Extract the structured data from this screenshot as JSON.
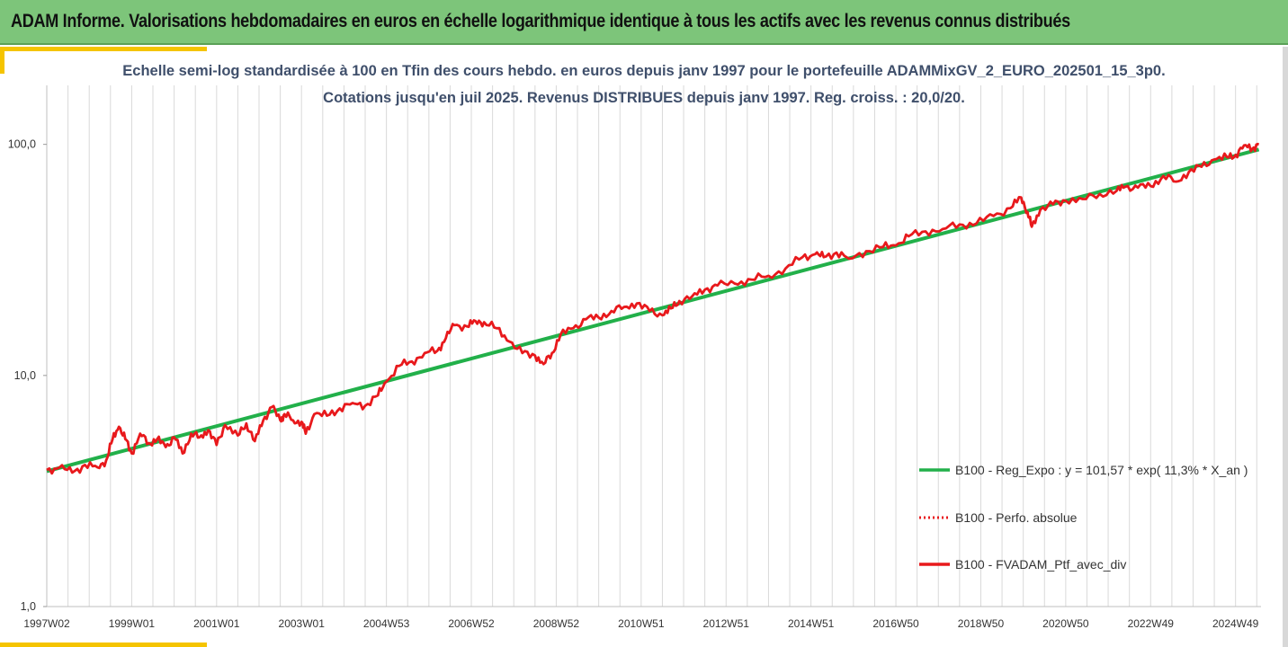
{
  "header": {
    "title": "ADAM Informe. Valorisations hebdomadaires en euros en échelle logarithmique identique à tous les actifs avec les revenus connus distribués"
  },
  "chart_data": {
    "type": "line",
    "title": "Echelle semi-log standardisée  à 100 en Tfin des cours hebdo.  en euros depuis janv 1997 pour le portefeuille ADAMMixGV_2_EURO_202501_15_3p0.",
    "subtitle": "Cotations  jusqu'en juil 2025. Revenus DISTRIBUES depuis janv 1997. Reg. croiss. : 20,0/20.",
    "y_scale": "log",
    "ylim": [
      1,
      180
    ],
    "y_ticks": [
      1,
      10,
      100
    ],
    "y_tick_labels": [
      "1,0",
      "10,0",
      "100,0"
    ],
    "xlim": [
      1997.0,
      2025.6
    ],
    "x_tick_labels": [
      "1997W02",
      "1999W01",
      "2001W01",
      "2003W01",
      "2004W53",
      "2006W52",
      "2008W52",
      "2010W51",
      "2012W51",
      "2014W51",
      "2016W50",
      "2018W50",
      "2020W50",
      "2022W49",
      "2024W49"
    ],
    "x_tick_values": [
      1997.0,
      1999.0,
      2001.0,
      2003.0,
      2005.0,
      2007.0,
      2009.0,
      2011.0,
      2013.0,
      2015.0,
      2017.0,
      2019.0,
      2021.0,
      2023.0,
      2025.0
    ],
    "grid": "vertical",
    "legend_position": "right",
    "series": [
      {
        "name": "B100 - Reg_Expo : y = 101,57 * exp( 11,3% *  X_an )",
        "color": "#22b04a",
        "style": "solid",
        "x": [
          1997.0,
          2025.55
        ],
        "y": [
          3.85,
          95
        ]
      },
      {
        "name": "B100 - Perfo. absolue",
        "color": "#e8191c",
        "style": "dotted",
        "x": [],
        "y": []
      },
      {
        "name": "B100 - FVADAM_Ptf_avec_div",
        "color": "#e8191c",
        "style": "solid",
        "x": [
          1997.0,
          1997.3,
          1997.6,
          1997.9,
          1998.2,
          1998.4,
          1998.55,
          1998.7,
          1998.85,
          1999.0,
          1999.2,
          1999.4,
          1999.6,
          1999.8,
          2000.0,
          2000.2,
          2000.4,
          2000.6,
          2000.8,
          2001.0,
          2001.2,
          2001.5,
          2001.7,
          2001.9,
          2002.1,
          2002.3,
          2002.5,
          2002.6,
          2002.8,
          2003.0,
          2003.1,
          2003.3,
          2003.6,
          2003.9,
          2004.2,
          2004.5,
          2004.8,
          2005.0,
          2005.3,
          2005.6,
          2005.9,
          2006.2,
          2006.4,
          2006.6,
          2006.9,
          2007.1,
          2007.3,
          2007.6,
          2007.9,
          2008.2,
          2008.5,
          2008.7,
          2008.9,
          2009.1,
          2009.4,
          2009.7,
          2010.0,
          2010.3,
          2010.6,
          2010.9,
          2011.2,
          2011.5,
          2011.7,
          2011.9,
          2012.2,
          2012.5,
          2012.8,
          2013.2,
          2013.6,
          2014.0,
          2014.4,
          2014.8,
          2015.1,
          2015.3,
          2015.6,
          2015.9,
          2016.3,
          2016.7,
          2017.0,
          2017.3,
          2017.7,
          2018.1,
          2018.5,
          2018.9,
          2019.3,
          2019.7,
          2019.95,
          2020.1,
          2020.2,
          2020.4,
          2020.7,
          2021.0,
          2021.4,
          2021.8,
          2022.2,
          2022.4,
          2022.7,
          2023.0,
          2023.3,
          2023.6,
          2023.9,
          2024.2,
          2024.5,
          2024.8,
          2025.0,
          2025.2,
          2025.4,
          2025.55
        ],
        "y": [
          3.9,
          4.0,
          3.8,
          4.1,
          4.0,
          4.3,
          5.3,
          6.0,
          5.3,
          4.6,
          5.6,
          5.1,
          5.3,
          4.9,
          5.4,
          4.6,
          5.6,
          5.4,
          5.8,
          5.0,
          6.1,
          5.5,
          6.2,
          5.2,
          6.4,
          7.3,
          6.4,
          6.8,
          6.4,
          6.3,
          5.6,
          6.8,
          6.7,
          7.2,
          7.6,
          7.4,
          8.2,
          9.4,
          11.0,
          11.5,
          12.5,
          12.8,
          14.5,
          16.5,
          16.3,
          17.2,
          17.0,
          16.0,
          14.0,
          12.5,
          12.2,
          11.2,
          12.5,
          15.0,
          16.0,
          17.5,
          17.8,
          19.0,
          19.8,
          20.5,
          19.0,
          18.2,
          19.5,
          21.0,
          22.0,
          23.5,
          24.5,
          25.0,
          26.0,
          27.0,
          29.0,
          32.5,
          33.5,
          32.5,
          34.0,
          32.0,
          34.5,
          36.0,
          36.5,
          40.0,
          42.0,
          43.0,
          45.0,
          45.5,
          49.0,
          53.0,
          59.0,
          51.0,
          44.0,
          52.0,
          55.0,
          57.0,
          58.0,
          61.0,
          63.0,
          65.5,
          65.0,
          66.0,
          73.0,
          69.0,
          76.0,
          80.0,
          86.0,
          88.0,
          90.0,
          99.0,
          96.0,
          100.0
        ]
      }
    ]
  }
}
